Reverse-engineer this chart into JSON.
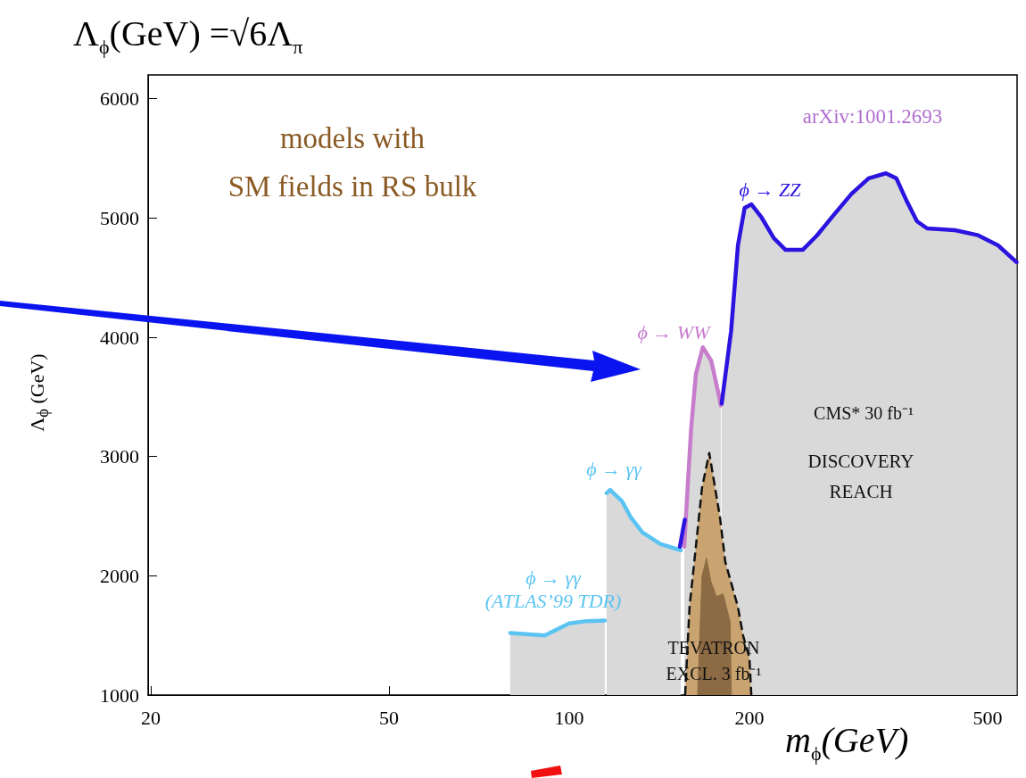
{
  "chart_data": {
    "type": "area",
    "title": "Λ$_{ϕ}$(GeV)  =√6Λ$_{π}$",
    "ylabel": "Λ$_{ϕ}$  (GeV)",
    "xlabel": "m$_{ϕ}$(GeV)",
    "log": "x",
    "marker": "none",
    "xlim": [
      19.8,
      560
    ],
    "ylim": [
      1000,
      6200
    ],
    "xticks": [
      20,
      50,
      100,
      200,
      500
    ],
    "yticks": [
      1000,
      2000,
      3000,
      4000,
      5000,
      6000
    ],
    "annotations": [
      "arXiv:1001.2693",
      "models with\nSM fields in RS bulk",
      "CMS* 30 fb⁻¹",
      "DISCOVERY\nREACH",
      "TEVATRON\nEXCL. 3 fb⁻¹"
    ],
    "series": [
      {
        "type": "area",
        "color": "#c9a471",
        "line_style": "dashed",
        "x": [
          156.2,
          158.9,
          162.8,
          166.7,
          171.4,
          178.6,
          182.3,
          191.3,
          195.3,
          200,
          201.5
        ],
        "values": [
          1000,
          1742,
          2244,
          2739,
          3030,
          2492,
          2117,
          1742,
          1495,
          1315,
          1000
        ]
      },
      {
        "type": "area",
        "color": "#8c6a44",
        "x": [
          163.9,
          166.7,
          169.6,
          172.5,
          176.2,
          180.8,
          185.7,
          186.6
        ],
        "values": [
          1000,
          1997,
          2147,
          1952,
          1825,
          1847,
          1615,
          1000
        ]
      },
      {
        "name": "ϕ → γγ\n(ATLAS’99 TDR)",
        "color": "#5bc4f2",
        "x": [
          79.7,
          84.8,
          91,
          100,
          107,
          114.7
        ],
        "values": [
          1520,
          1510,
          1500,
          1600,
          1620,
          1625
        ]
      },
      {
        "name": "ϕ → γγ",
        "color": "#5bc4f2",
        "x": [
          115.5,
          117.1,
          122.5,
          126.7,
          132.5,
          141.9,
          153.6
        ],
        "values": [
          2694,
          2720,
          2627,
          2492,
          2364,
          2267,
          2214
        ]
      },
      {
        "name": "ϕ → WW",
        "color": "#c77ccc",
        "x": [
          155.7,
          157.3,
          159.9,
          162.8,
          167.2,
          172.7,
          178.0,
          179.2
        ],
        "values": [
          2244,
          2642,
          3241,
          3691,
          3916,
          3804,
          3504,
          3429
        ]
      },
      {
        "type": "line",
        "color": "#2b14e0",
        "x": [
          153.1,
          156.0
        ],
        "values": [
          2244,
          2470
        ]
      },
      {
        "name": "ϕ → ZZ",
        "color": "#2b14e0",
        "x": [
          179.8,
          186.4,
          191.4,
          196.4,
          201.6,
          209.7,
          219.7,
          229.9,
          245.5,
          259.3,
          277.1,
          296.1,
          316.4,
          338.1,
          352,
          366,
          381,
          396.3,
          441,
          482,
          520.4,
          559
        ],
        "values": [
          3444,
          4051,
          4771,
          5086,
          5115,
          5003,
          4831,
          4733,
          4733,
          4853,
          5030,
          5202,
          5333,
          5375,
          5333,
          5146,
          4973,
          4913,
          4898,
          4856,
          4771,
          4630
        ]
      }
    ]
  }
}
